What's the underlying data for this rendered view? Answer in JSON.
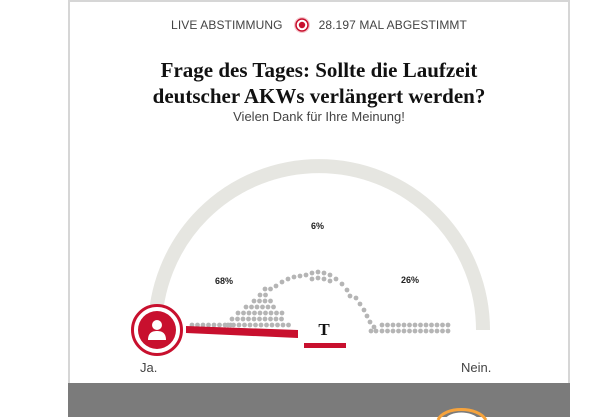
{
  "status": {
    "live_label": "LIVE ABSTIMMUNG",
    "votes_label": "28.197 MAL ABGESTIMMT"
  },
  "poll": {
    "question_line1": "Frage des Tages: Sollte die Laufzeit",
    "question_line2": "deutscher AKWs verlängert werden?",
    "thanks": "Vielen Dank für Ihre Meinung!"
  },
  "results": {
    "ja_percent": "68%",
    "middle_percent": "6%",
    "nein_percent": "26%"
  },
  "scale": {
    "left_label": "Ja.",
    "right_label": "Nein."
  },
  "brand": {
    "logo_letter": "T"
  },
  "colors": {
    "accent": "#c8102e",
    "dot": "#b5b5b5",
    "arc": "#e6e6e1",
    "footer": "#7b7b7b"
  },
  "icons": {
    "live": "live-record-icon",
    "avatar": "user-avatar-icon"
  }
}
